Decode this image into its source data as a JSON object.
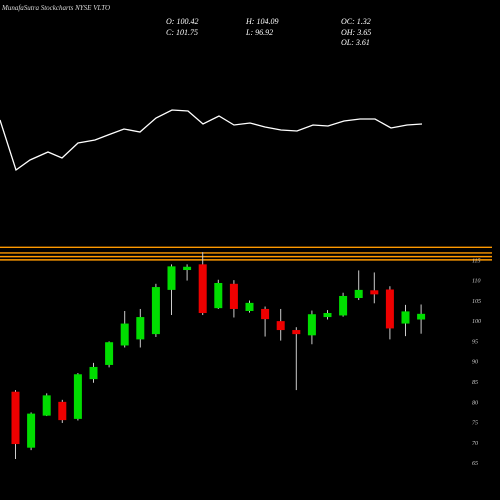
{
  "header": {
    "watermark": "MunafaSutra",
    "title": "Stockcharts NYSE VLTO",
    "open": "O: 100.42",
    "high": "H: 104.09",
    "oc": "OC: 1.32",
    "close": "C: 101.75",
    "low": "L: 96.92",
    "oh": "OH: 3.65",
    "ol": "OL: 3.61"
  },
  "chart_data": {
    "type": "candlestick",
    "y_ticks": [
      65,
      70,
      75,
      80,
      85,
      90,
      95,
      100,
      105,
      110,
      115
    ],
    "y_tick_labels": [
      "65",
      "70",
      "75",
      "80",
      "85",
      "90",
      "95",
      "100",
      "105",
      "110",
      "115"
    ],
    "ylim": [
      63.3,
      120
    ],
    "resistance_lines": [
      118.2,
      116.8,
      115.9,
      115.1
    ],
    "candles": [
      {
        "o": 82.6,
        "h": 83.0,
        "l": 66.0,
        "c": 69.7
      },
      {
        "o": 68.8,
        "h": 77.5,
        "l": 68.2,
        "c": 77.2
      },
      {
        "o": 76.7,
        "h": 82.2,
        "l": 76.6,
        "c": 81.7
      },
      {
        "o": 80.1,
        "h": 80.6,
        "l": 74.9,
        "c": 75.6
      },
      {
        "o": 75.9,
        "h": 87.2,
        "l": 75.5,
        "c": 86.9
      },
      {
        "o": 85.7,
        "h": 89.7,
        "l": 84.8,
        "c": 88.7
      },
      {
        "o": 89.2,
        "h": 95.0,
        "l": 88.6,
        "c": 94.8
      },
      {
        "o": 94.0,
        "h": 102.5,
        "l": 93.5,
        "c": 99.4
      },
      {
        "o": 95.5,
        "h": 103.0,
        "l": 93.5,
        "c": 101.0
      },
      {
        "o": 96.8,
        "h": 109.2,
        "l": 96.1,
        "c": 108.4
      },
      {
        "o": 107.7,
        "h": 114.0,
        "l": 101.5,
        "c": 113.5
      },
      {
        "o": 112.6,
        "h": 114.0,
        "l": 110.0,
        "c": 113.4
      },
      {
        "o": 114.0,
        "h": 117.0,
        "l": 101.5,
        "c": 102.0
      },
      {
        "o": 103.2,
        "h": 110.2,
        "l": 103.0,
        "c": 109.4
      },
      {
        "o": 109.2,
        "h": 110.1,
        "l": 100.9,
        "c": 103.0
      },
      {
        "o": 102.5,
        "h": 105.1,
        "l": 102.1,
        "c": 104.5
      },
      {
        "o": 103.0,
        "h": 103.6,
        "l": 96.2,
        "c": 100.5
      },
      {
        "o": 100.0,
        "h": 103.0,
        "l": 95.2,
        "c": 97.8
      },
      {
        "o": 97.8,
        "h": 98.5,
        "l": 83.0,
        "c": 96.8
      },
      {
        "o": 96.5,
        "h": 102.6,
        "l": 94.3,
        "c": 101.7
      },
      {
        "o": 101.0,
        "h": 102.7,
        "l": 100.4,
        "c": 102.0
      },
      {
        "o": 101.4,
        "h": 107.0,
        "l": 101.1,
        "c": 106.2
      },
      {
        "o": 105.7,
        "h": 112.5,
        "l": 105.2,
        "c": 107.7
      },
      {
        "o": 107.6,
        "h": 112.0,
        "l": 104.4,
        "c": 106.6
      },
      {
        "o": 107.8,
        "h": 108.6,
        "l": 95.5,
        "c": 98.2
      },
      {
        "o": 99.4,
        "h": 104.0,
        "l": 96.3,
        "c": 102.4
      },
      {
        "o": 100.4,
        "h": 104.1,
        "l": 96.9,
        "c": 101.8
      }
    ],
    "indicator": [
      {
        "x": 0,
        "v": 120
      },
      {
        "x": 16,
        "v": 170
      },
      {
        "x": 30,
        "v": 160
      },
      {
        "x": 48,
        "v": 152
      },
      {
        "x": 62,
        "v": 158
      },
      {
        "x": 78,
        "v": 143
      },
      {
        "x": 95,
        "v": 140
      },
      {
        "x": 108,
        "v": 135
      },
      {
        "x": 124,
        "v": 129
      },
      {
        "x": 140,
        "v": 132
      },
      {
        "x": 156,
        "v": 118
      },
      {
        "x": 172,
        "v": 110
      },
      {
        "x": 188,
        "v": 111
      },
      {
        "x": 203,
        "v": 124
      },
      {
        "x": 219,
        "v": 116
      },
      {
        "x": 234,
        "v": 125
      },
      {
        "x": 250,
        "v": 123
      },
      {
        "x": 265,
        "v": 127
      },
      {
        "x": 281,
        "v": 130
      },
      {
        "x": 297,
        "v": 131
      },
      {
        "x": 313,
        "v": 125
      },
      {
        "x": 328,
        "v": 126
      },
      {
        "x": 344,
        "v": 121
      },
      {
        "x": 360,
        "v": 119
      },
      {
        "x": 375,
        "v": 119
      },
      {
        "x": 391,
        "v": 128
      },
      {
        "x": 407,
        "v": 125
      },
      {
        "x": 422,
        "v": 124
      }
    ],
    "colors": {
      "up": "#00dd00",
      "down": "#ee0000",
      "resistance": "#ff9900",
      "indicator": "#ffffff",
      "background": "#000000"
    }
  }
}
